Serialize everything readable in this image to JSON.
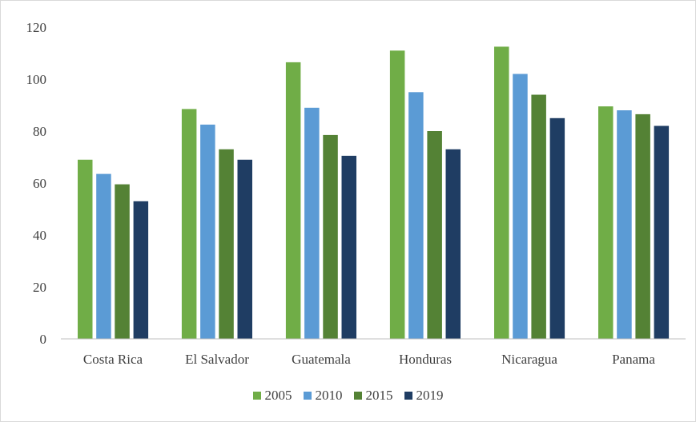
{
  "chart_data": {
    "type": "bar",
    "title": "",
    "xlabel": "",
    "ylabel": "",
    "ylim": [
      0,
      120
    ],
    "yticks": [
      0,
      20,
      40,
      60,
      80,
      100,
      120
    ],
    "grid": false,
    "legend_position": "bottom",
    "categories": [
      "Costa Rica",
      "El Salvador",
      "Guatemala",
      "Honduras",
      "Nicaragua",
      "Panama"
    ],
    "series": [
      {
        "name": "2005",
        "color": "#70ad47",
        "values": [
          69,
          88.5,
          106.5,
          111,
          112.5,
          89.5
        ]
      },
      {
        "name": "2010",
        "color": "#5b9bd5",
        "values": [
          63.5,
          82.5,
          89,
          95,
          102,
          88
        ]
      },
      {
        "name": "2015",
        "color": "#548235",
        "values": [
          59.5,
          73,
          78.5,
          80,
          94,
          86.5
        ]
      },
      {
        "name": "2019",
        "color": "#1f3d63",
        "values": [
          53,
          69,
          70.5,
          73,
          85,
          82
        ]
      }
    ]
  }
}
